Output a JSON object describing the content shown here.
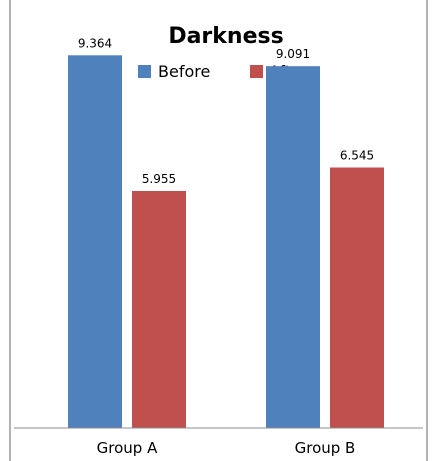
{
  "chart_data": {
    "type": "bar",
    "title": "Darkness",
    "categories": [
      "Group A",
      "Group B"
    ],
    "series": [
      {
        "name": "Before",
        "color": "#4f81bd",
        "values": [
          9.364,
          9.091
        ],
        "labels": [
          "9.364",
          "9.091"
        ]
      },
      {
        "name": "After",
        "color": "#c0504d",
        "values": [
          5.955,
          6.545
        ],
        "labels": [
          "5.955",
          "6.545"
        ]
      }
    ],
    "xlabel": "",
    "ylabel": "",
    "ylim": [
      0,
      10
    ],
    "grid": false,
    "legend_position": "top"
  }
}
